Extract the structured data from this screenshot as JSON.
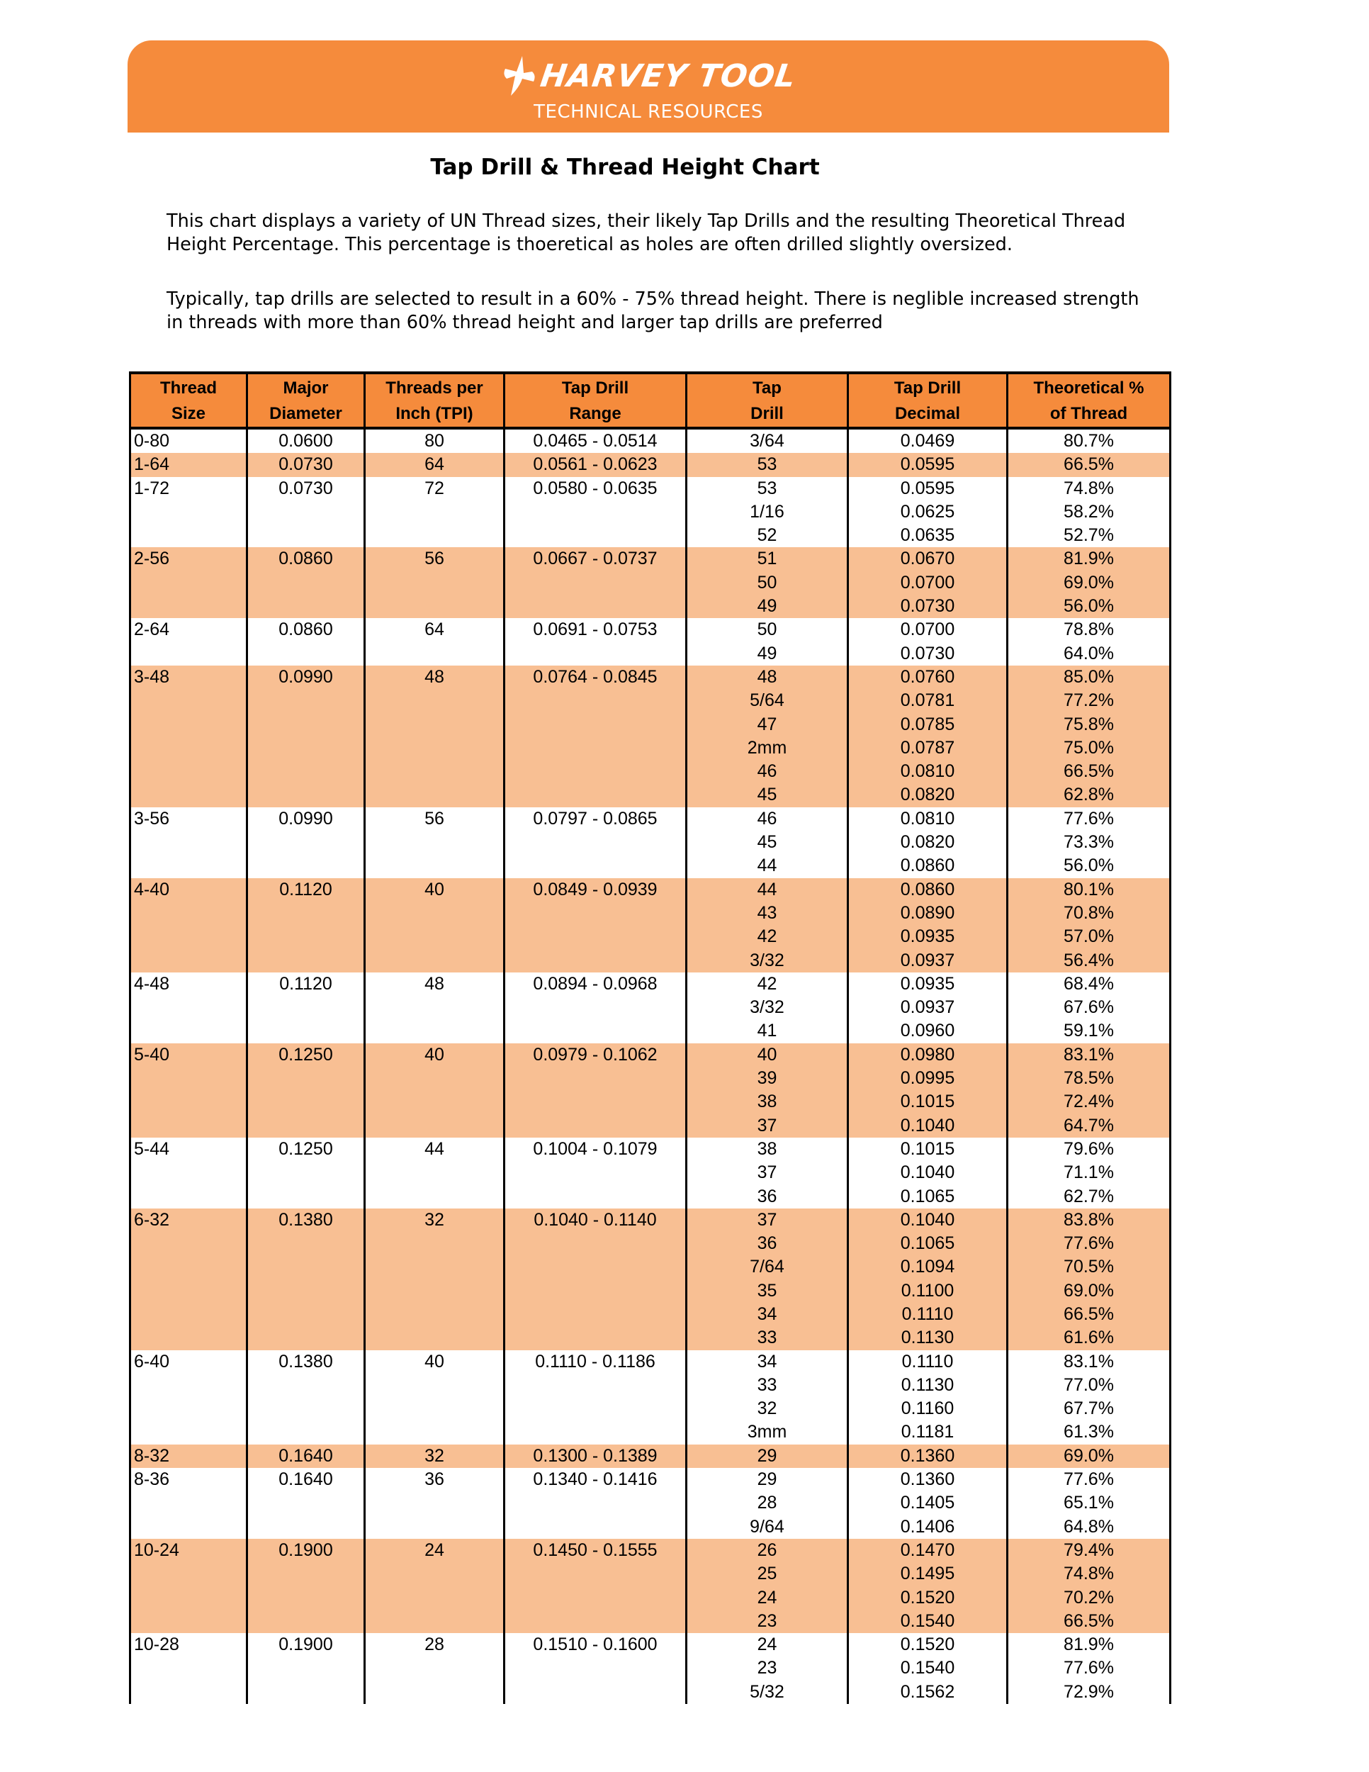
{
  "brand": {
    "logo_text": "HARVEY TOOL",
    "subtitle": "TECHNICAL RESOURCES",
    "accent": "#F58B3C",
    "band": "#F8BF93"
  },
  "page": {
    "title": "Tap Drill & Thread Height Chart",
    "intro1": "This chart displays a variety of UN Thread sizes, their likely Tap Drills and the resulting Theoretical Thread Height Percentage.  This percentage is thoeretical as holes are often drilled slightly oversized.",
    "intro2": "Typically, tap drills are selected to result in a 60% - 75% thread height.  There is neglible increased strength in threads with more than 60% thread height and larger tap drills are preferred"
  },
  "table": {
    "headers": [
      [
        "Thread",
        "Size"
      ],
      [
        "Major",
        "Diameter"
      ],
      [
        "Threads per",
        "Inch (TPI)"
      ],
      [
        "Tap Drill",
        "Range"
      ],
      [
        "Tap",
        "Drill"
      ],
      [
        "Tap Drill",
        "Decimal"
      ],
      [
        "Theoretical %",
        "of Thread"
      ]
    ],
    "groups": [
      {
        "size": "0-80",
        "major": "0.0600",
        "tpi": "80",
        "range": "0.0465 - 0.0514",
        "drills": [
          [
            "3/64",
            "0.0469",
            "80.7%"
          ]
        ]
      },
      {
        "size": "1-64",
        "major": "0.0730",
        "tpi": "64",
        "range": "0.0561 - 0.0623",
        "drills": [
          [
            "53",
            "0.0595",
            "66.5%"
          ]
        ]
      },
      {
        "size": "1-72",
        "major": "0.0730",
        "tpi": "72",
        "range": "0.0580 - 0.0635",
        "drills": [
          [
            "53",
            "0.0595",
            "74.8%"
          ],
          [
            "1/16",
            "0.0625",
            "58.2%"
          ],
          [
            "52",
            "0.0635",
            "52.7%"
          ]
        ]
      },
      {
        "size": "2-56",
        "major": "0.0860",
        "tpi": "56",
        "range": "0.0667 - 0.0737",
        "drills": [
          [
            "51",
            "0.0670",
            "81.9%"
          ],
          [
            "50",
            "0.0700",
            "69.0%"
          ],
          [
            "49",
            "0.0730",
            "56.0%"
          ]
        ]
      },
      {
        "size": "2-64",
        "major": "0.0860",
        "tpi": "64",
        "range": "0.0691 - 0.0753",
        "drills": [
          [
            "50",
            "0.0700",
            "78.8%"
          ],
          [
            "49",
            "0.0730",
            "64.0%"
          ]
        ]
      },
      {
        "size": "3-48",
        "major": "0.0990",
        "tpi": "48",
        "range": "0.0764 - 0.0845",
        "drills": [
          [
            "48",
            "0.0760",
            "85.0%"
          ],
          [
            "5/64",
            "0.0781",
            "77.2%"
          ],
          [
            "47",
            "0.0785",
            "75.8%"
          ],
          [
            "2mm",
            "0.0787",
            "75.0%"
          ],
          [
            "46",
            "0.0810",
            "66.5%"
          ],
          [
            "45",
            "0.0820",
            "62.8%"
          ]
        ]
      },
      {
        "size": "3-56",
        "major": "0.0990",
        "tpi": "56",
        "range": "0.0797 - 0.0865",
        "drills": [
          [
            "46",
            "0.0810",
            "77.6%"
          ],
          [
            "45",
            "0.0820",
            "73.3%"
          ],
          [
            "44",
            "0.0860",
            "56.0%"
          ]
        ]
      },
      {
        "size": "4-40",
        "major": "0.1120",
        "tpi": "40",
        "range": "0.0849 - 0.0939",
        "drills": [
          [
            "44",
            "0.0860",
            "80.1%"
          ],
          [
            "43",
            "0.0890",
            "70.8%"
          ],
          [
            "42",
            "0.0935",
            "57.0%"
          ],
          [
            "3/32",
            "0.0937",
            "56.4%"
          ]
        ]
      },
      {
        "size": "4-48",
        "major": "0.1120",
        "tpi": "48",
        "range": "0.0894 - 0.0968",
        "drills": [
          [
            "42",
            "0.0935",
            "68.4%"
          ],
          [
            "3/32",
            "0.0937",
            "67.6%"
          ],
          [
            "41",
            "0.0960",
            "59.1%"
          ]
        ]
      },
      {
        "size": "5-40",
        "major": "0.1250",
        "tpi": "40",
        "range": "0.0979 - 0.1062",
        "drills": [
          [
            "40",
            "0.0980",
            "83.1%"
          ],
          [
            "39",
            "0.0995",
            "78.5%"
          ],
          [
            "38",
            "0.1015",
            "72.4%"
          ],
          [
            "37",
            "0.1040",
            "64.7%"
          ]
        ]
      },
      {
        "size": "5-44",
        "major": "0.1250",
        "tpi": "44",
        "range": "0.1004 - 0.1079",
        "drills": [
          [
            "38",
            "0.1015",
            "79.6%"
          ],
          [
            "37",
            "0.1040",
            "71.1%"
          ],
          [
            "36",
            "0.1065",
            "62.7%"
          ]
        ]
      },
      {
        "size": "6-32",
        "major": "0.1380",
        "tpi": "32",
        "range": "0.1040 - 0.1140",
        "drills": [
          [
            "37",
            "0.1040",
            "83.8%"
          ],
          [
            "36",
            "0.1065",
            "77.6%"
          ],
          [
            "7/64",
            "0.1094",
            "70.5%"
          ],
          [
            "35",
            "0.1100",
            "69.0%"
          ],
          [
            "34",
            "0.1110",
            "66.5%"
          ],
          [
            "33",
            "0.1130",
            "61.6%"
          ]
        ]
      },
      {
        "size": "6-40",
        "major": "0.1380",
        "tpi": "40",
        "range": "0.1110 - 0.1186",
        "drills": [
          [
            "34",
            "0.1110",
            "83.1%"
          ],
          [
            "33",
            "0.1130",
            "77.0%"
          ],
          [
            "32",
            "0.1160",
            "67.7%"
          ],
          [
            "3mm",
            "0.1181",
            "61.3%"
          ]
        ]
      },
      {
        "size": "8-32",
        "major": "0.1640",
        "tpi": "32",
        "range": "0.1300 - 0.1389",
        "drills": [
          [
            "29",
            "0.1360",
            "69.0%"
          ]
        ]
      },
      {
        "size": "8-36",
        "major": "0.1640",
        "tpi": "36",
        "range": "0.1340 - 0.1416",
        "drills": [
          [
            "29",
            "0.1360",
            "77.6%"
          ],
          [
            "28",
            "0.1405",
            "65.1%"
          ],
          [
            "9/64",
            "0.1406",
            "64.8%"
          ]
        ]
      },
      {
        "size": "10-24",
        "major": "0.1900",
        "tpi": "24",
        "range": "0.1450 - 0.1555",
        "drills": [
          [
            "26",
            "0.1470",
            "79.4%"
          ],
          [
            "25",
            "0.1495",
            "74.8%"
          ],
          [
            "24",
            "0.1520",
            "70.2%"
          ],
          [
            "23",
            "0.1540",
            "66.5%"
          ]
        ]
      },
      {
        "size": "10-28",
        "major": "0.1900",
        "tpi": "28",
        "range": "0.1510 - 0.1600",
        "drills": [
          [
            "24",
            "0.1520",
            "81.9%"
          ],
          [
            "23",
            "0.1540",
            "77.6%"
          ],
          [
            "5/32",
            "0.1562",
            "72.9%"
          ]
        ]
      }
    ]
  }
}
